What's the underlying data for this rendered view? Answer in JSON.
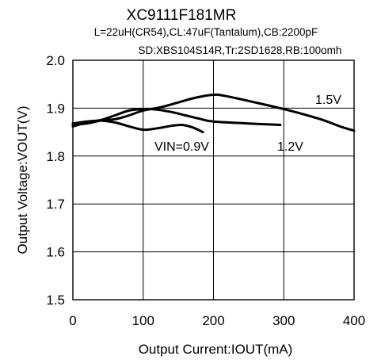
{
  "chart_data": {
    "type": "line",
    "title": "XC9111F181MR",
    "subtitle_lines": [
      "L=22uH(CR54),CL:47uF(Tantalum),CB:2200pF",
      "SD:XBS104S14R,Tr:2SD1628,RB:100omh"
    ],
    "xlabel": "Output Current:IOUT(mA)",
    "ylabel": "Output Voltage:VOUT(V)",
    "xlim": [
      0,
      400
    ],
    "ylim": [
      1.5,
      2.0
    ],
    "x_ticks": [
      "0",
      "100",
      "200",
      "300",
      "400"
    ],
    "y_ticks": [
      "1.5",
      "1.6",
      "1.7",
      "1.8",
      "1.9",
      "2.0"
    ],
    "grid": true,
    "legend": "none",
    "series": [
      {
        "name": "VIN=0.9V",
        "x": [
          0,
          20,
          40,
          60,
          80,
          100,
          120,
          140,
          155,
          170,
          185
        ],
        "y": [
          1.868,
          1.872,
          1.874,
          1.87,
          1.862,
          1.855,
          1.858,
          1.863,
          1.865,
          1.86,
          1.85
        ]
      },
      {
        "name": "1.2V",
        "x": [
          0,
          20,
          40,
          60,
          80,
          100,
          120,
          140,
          160,
          180,
          200,
          250,
          295
        ],
        "y": [
          1.865,
          1.868,
          1.875,
          1.885,
          1.895,
          1.898,
          1.897,
          1.892,
          1.885,
          1.878,
          1.872,
          1.868,
          1.865
        ]
      },
      {
        "name": "1.5V",
        "x": [
          0,
          20,
          40,
          60,
          80,
          100,
          125,
          150,
          175,
          200,
          215,
          250,
          300,
          350,
          380,
          400
        ],
        "y": [
          1.862,
          1.87,
          1.875,
          1.877,
          1.885,
          1.895,
          1.902,
          1.912,
          1.922,
          1.928,
          1.926,
          1.915,
          1.898,
          1.878,
          1.862,
          1.853
        ]
      }
    ],
    "annotations": [
      "1.5V",
      "VIN=0.9V",
      "1.2V"
    ]
  }
}
